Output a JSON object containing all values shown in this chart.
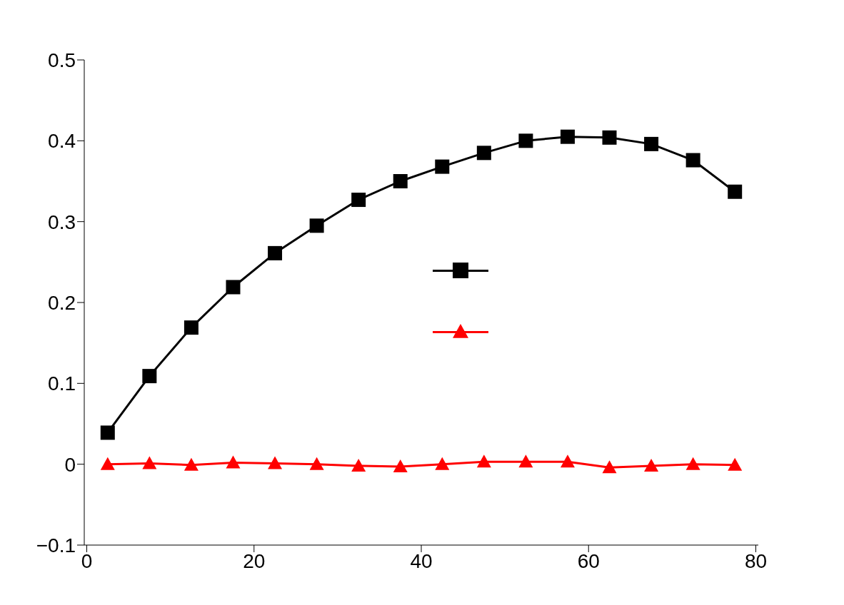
{
  "chart_data": {
    "type": "line",
    "x": [
      2.5,
      7.5,
      12.5,
      17.5,
      22.5,
      27.5,
      32.5,
      37.5,
      42.5,
      47.5,
      52.5,
      57.5,
      62.5,
      67.5,
      72.5,
      77.5
    ],
    "series": [
      {
        "color": "#000000",
        "marker": "square",
        "values": [
          0.039,
          0.109,
          0.169,
          0.219,
          0.261,
          0.295,
          0.327,
          0.35,
          0.368,
          0.385,
          0.4,
          0.405,
          0.404,
          0.396,
          0.376,
          0.337
        ]
      },
      {
        "color": "#ff0000",
        "marker": "triangle",
        "values": [
          0,
          0.001,
          -0.001,
          0.002,
          0.001,
          0,
          -0.002,
          -0.003,
          0,
          0.003,
          0.003,
          0.003,
          -0.004,
          -0.002,
          0,
          -0.001
        ]
      }
    ],
    "xlim": [
      -0.3,
      80.3
    ],
    "xticks": [
      0,
      20,
      40,
      60,
      80
    ],
    "ylim": [
      -0.1,
      0.5
    ],
    "yticks": [
      {
        "value": -0.1,
        "label": "−0.1"
      },
      0,
      0.1,
      0.2,
      0.3,
      0.4,
      0.5
    ],
    "grid": false
  }
}
